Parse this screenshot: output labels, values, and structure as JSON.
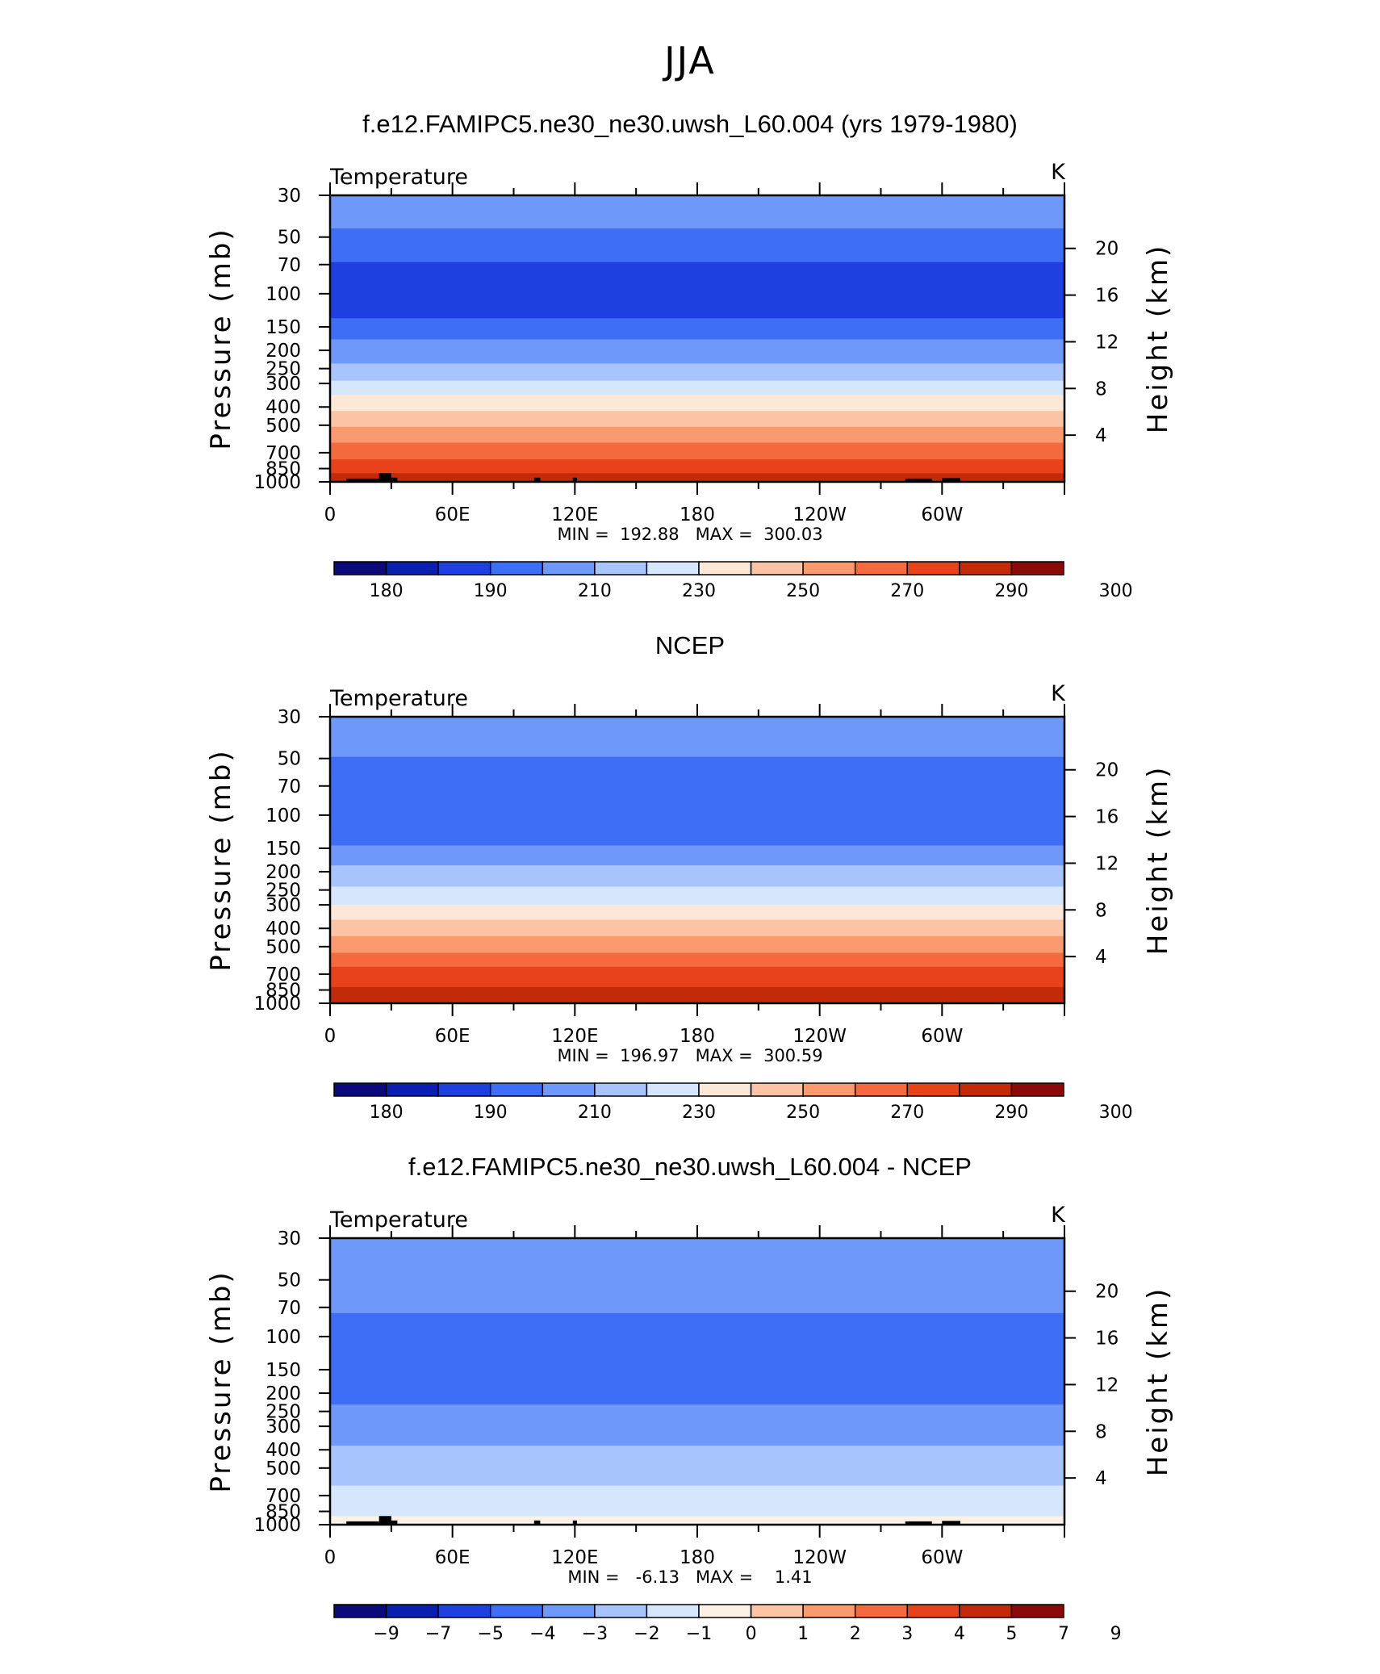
{
  "figure_title": "JJA",
  "colormaps": {
    "abs": [
      "#0a0a7a",
      "#0a1fb0",
      "#1e40e0",
      "#3d6ef5",
      "#6e98fa",
      "#a8c4fc",
      "#d6e6fc",
      "#fde8d8",
      "#fcc3a5",
      "#f8996e",
      "#f46a3e",
      "#e8421a",
      "#c32a0a",
      "#8a0a0a"
    ],
    "diff": [
      "#0a0a7a",
      "#0a1fb0",
      "#1e40e0",
      "#3d6ef5",
      "#6e98fa",
      "#a8c4fc",
      "#d6e6fc",
      "#fdf0e4",
      "#fcc3a5",
      "#f8996e",
      "#f46a3e",
      "#e8421a",
      "#c32a0a",
      "#8a0a0a"
    ]
  },
  "panels": [
    {
      "title": "f.e12.FAMIPC5.ne30_ne30.uwsh_L60.004 (yrs 1979-1980)",
      "left_label": "Temperature",
      "units": "K",
      "ylabel": "Pressure (mb)",
      "y2label": "Height (km)",
      "minmax": "MIN =  192.88   MAX =  300.03",
      "colorbar_labels": [
        "180",
        "190",
        "210",
        "230",
        "250",
        "270",
        "290",
        "300"
      ],
      "colormap": "abs"
    },
    {
      "title": "NCEP",
      "left_label": "Temperature",
      "units": "K",
      "ylabel": "Pressure (mb)",
      "y2label": "Height (km)",
      "minmax": "MIN =  196.97   MAX =  300.59",
      "colorbar_labels": [
        "180",
        "190",
        "210",
        "230",
        "250",
        "270",
        "290",
        "300"
      ],
      "colormap": "abs"
    },
    {
      "title": "f.e12.FAMIPC5.ne30_ne30.uwsh_L60.004 - NCEP",
      "left_label": "Temperature",
      "units": "K",
      "ylabel": "Pressure (mb)",
      "y2label": "Height (km)",
      "minmax": "MIN =   -6.13   MAX =    1.41",
      "colorbar_labels": [
        "−9",
        "−7",
        "−5",
        "−4",
        "−3",
        "−2",
        "−1",
        "0",
        "1",
        "2",
        "3",
        "4",
        "5",
        "7",
        "9"
      ],
      "colormap": "diff"
    }
  ],
  "chart_data": [
    {
      "type": "heatmap",
      "title": "f.e12.FAMIPC5.ne30_ne30.uwsh_L60.004 (yrs 1979-1980)",
      "variable": "Temperature",
      "units": "K",
      "xlabel": "",
      "ylabel": "Pressure (mb)",
      "y2label": "Height (km)",
      "x_ticks": [
        "0",
        "60E",
        "120E",
        "180",
        "120W",
        "60W"
      ],
      "y_ticks": [
        30,
        50,
        70,
        100,
        150,
        200,
        250,
        300,
        400,
        500,
        700,
        850,
        1000
      ],
      "y_scale": "log",
      "y2_ticks": [
        20,
        16,
        12,
        8,
        4
      ],
      "levels": [
        180,
        185,
        190,
        200,
        210,
        220,
        230,
        240,
        250,
        260,
        270,
        280,
        290,
        295,
        300
      ],
      "min": 192.88,
      "max": 300.03,
      "profile": [
        {
          "p": 30,
          "bin": 4
        },
        {
          "p": 45,
          "bin": 3
        },
        {
          "p": 68,
          "bin": 2
        },
        {
          "p": 135,
          "bin": 3
        },
        {
          "p": 175,
          "bin": 4
        },
        {
          "p": 235,
          "bin": 5
        },
        {
          "p": 290,
          "bin": 6
        },
        {
          "p": 345,
          "bin": 7
        },
        {
          "p": 420,
          "bin": 8
        },
        {
          "p": 510,
          "bin": 9
        },
        {
          "p": 620,
          "bin": 10
        },
        {
          "p": 760,
          "bin": 11
        },
        {
          "p": 900,
          "bin": 12
        },
        {
          "p": 1000,
          "bin": 12
        }
      ]
    },
    {
      "type": "heatmap",
      "title": "NCEP",
      "variable": "Temperature",
      "units": "K",
      "xlabel": "",
      "ylabel": "Pressure (mb)",
      "y2label": "Height (km)",
      "x_ticks": [
        "0",
        "60E",
        "120E",
        "180",
        "120W",
        "60W"
      ],
      "y_ticks": [
        30,
        50,
        70,
        100,
        150,
        200,
        250,
        300,
        400,
        500,
        700,
        850,
        1000
      ],
      "y_scale": "log",
      "y2_ticks": [
        20,
        16,
        12,
        8,
        4
      ],
      "levels": [
        180,
        185,
        190,
        200,
        210,
        220,
        230,
        240,
        250,
        260,
        270,
        280,
        290,
        295,
        300
      ],
      "min": 196.97,
      "max": 300.59,
      "profile": [
        {
          "p": 30,
          "bin": 4
        },
        {
          "p": 49,
          "bin": 3
        },
        {
          "p": 145,
          "bin": 4
        },
        {
          "p": 185,
          "bin": 5
        },
        {
          "p": 240,
          "bin": 6
        },
        {
          "p": 300,
          "bin": 7
        },
        {
          "p": 360,
          "bin": 8
        },
        {
          "p": 440,
          "bin": 9
        },
        {
          "p": 540,
          "bin": 10
        },
        {
          "p": 640,
          "bin": 11
        },
        {
          "p": 820,
          "bin": 12
        },
        {
          "p": 1000,
          "bin": 12
        }
      ]
    },
    {
      "type": "heatmap",
      "title": "f.e12.FAMIPC5.ne30_ne30.uwsh_L60.004 - NCEP",
      "variable": "Temperature",
      "units": "K",
      "xlabel": "",
      "ylabel": "Pressure (mb)",
      "y2label": "Height (km)",
      "x_ticks": [
        "0",
        "60E",
        "120E",
        "180",
        "120W",
        "60W"
      ],
      "y_ticks": [
        30,
        50,
        70,
        100,
        150,
        200,
        250,
        300,
        400,
        500,
        700,
        850,
        1000
      ],
      "y_scale": "log",
      "y2_ticks": [
        20,
        16,
        12,
        8,
        4
      ],
      "levels": [
        -9,
        -7,
        -5,
        -4,
        -3,
        -2,
        -1,
        0,
        1,
        2,
        3,
        4,
        5,
        7,
        9
      ],
      "min": -6.13,
      "max": 1.41,
      "profile": [
        {
          "p": 30,
          "bin": 4
        },
        {
          "p": 75,
          "bin": 3
        },
        {
          "p": 230,
          "bin": 4
        },
        {
          "p": 380,
          "bin": 5
        },
        {
          "p": 620,
          "bin": 6
        },
        {
          "p": 900,
          "bin": 7
        },
        {
          "p": 1000,
          "bin": 7
        }
      ]
    }
  ]
}
